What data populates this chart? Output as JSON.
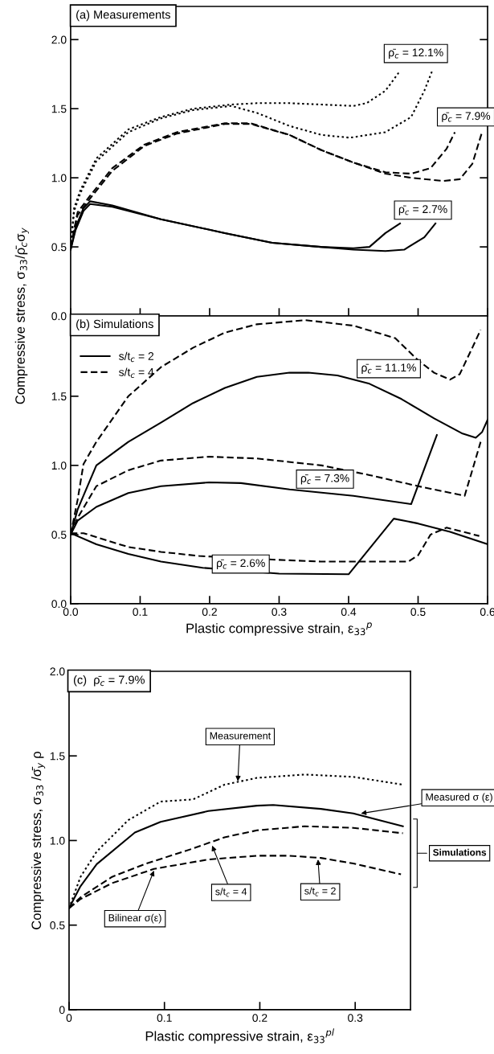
{
  "chart_data": [
    {
      "type": "line",
      "title": "(a) Measurements",
      "ylabel": "Compressive stress, σ$_{33}$/ρ̄$_{c}$σ$_{y}$",
      "xlim": [
        0.0,
        0.6
      ],
      "ylim": [
        0.0,
        2.24
      ],
      "xticks": [
        0,
        0.1,
        0.2,
        0.3,
        0.4,
        0.5,
        0.6
      ],
      "yticks": [
        {
          "value": 0,
          "label": "0.0"
        },
        0.5,
        {
          "value": 1,
          "label": "1.0"
        },
        1.5,
        {
          "value": 2,
          "label": "2.0"
        }
      ],
      "tick_labels": "y",
      "series": [
        {
          "color": "#000000",
          "line_style": "dotted",
          "x": [
            0,
            0.005,
            0.014,
            0.037,
            0.083,
            0.13,
            0.176,
            0.231,
            0.268,
            0.315,
            0.361,
            0.407,
            0.426,
            0.453,
            0.472
          ],
          "values": [
            0.5,
            0.78,
            0.91,
            1.14,
            1.35,
            1.44,
            1.5,
            1.53,
            1.54,
            1.54,
            1.53,
            1.52,
            1.54,
            1.63,
            1.76
          ]
        },
        {
          "color": "#000000",
          "line_style": "dotted",
          "x": [
            0,
            0.005,
            0.014,
            0.037,
            0.083,
            0.13,
            0.176,
            0.231,
            0.268,
            0.315,
            0.361,
            0.402,
            0.453,
            0.49,
            0.509,
            0.52
          ],
          "values": [
            0.5,
            0.76,
            0.89,
            1.12,
            1.33,
            1.43,
            1.49,
            1.52,
            1.47,
            1.375,
            1.31,
            1.29,
            1.33,
            1.44,
            1.63,
            1.77
          ]
        },
        {
          "color": "#000000",
          "line_style": "dashed",
          "x": [
            0,
            0.01,
            0.028,
            0.06,
            0.106,
            0.153,
            0.222,
            0.259,
            0.315,
            0.361,
            0.407,
            0.453,
            0.49,
            0.518,
            0.541,
            0.553
          ],
          "values": [
            0.5,
            0.75,
            0.87,
            1.07,
            1.24,
            1.33,
            1.395,
            1.395,
            1.31,
            1.2,
            1.11,
            1.04,
            1.03,
            1.07,
            1.21,
            1.33
          ]
        },
        {
          "color": "#000000",
          "line_style": "dashed",
          "x": [
            0,
            0.01,
            0.028,
            0.06,
            0.106,
            0.153,
            0.222,
            0.259,
            0.315,
            0.361,
            0.407,
            0.453,
            0.49,
            0.537,
            0.56,
            0.578,
            0.592
          ],
          "values": [
            0.5,
            0.73,
            0.85,
            1.05,
            1.23,
            1.32,
            1.39,
            1.39,
            1.31,
            1.2,
            1.11,
            1.03,
            1.0,
            0.977,
            0.99,
            1.1,
            1.33
          ]
        },
        {
          "color": "#000000",
          "line_style": "solid",
          "x": [
            0,
            0.007,
            0.0185,
            0.028,
            0.06,
            0.13,
            0.222,
            0.29,
            0.36,
            0.407,
            0.43,
            0.453,
            0.474
          ],
          "values": [
            0.48,
            0.64,
            0.78,
            0.83,
            0.8,
            0.7,
            0.6,
            0.53,
            0.5,
            0.49,
            0.5,
            0.6,
            0.67
          ]
        },
        {
          "color": "#000000",
          "line_style": "solid",
          "x": [
            0,
            0.007,
            0.0185,
            0.028,
            0.06,
            0.13,
            0.222,
            0.29,
            0.36,
            0.407,
            0.453,
            0.48,
            0.509,
            0.525
          ],
          "values": [
            0.48,
            0.62,
            0.76,
            0.81,
            0.79,
            0.7,
            0.6,
            0.53,
            0.5,
            0.48,
            0.47,
            0.48,
            0.57,
            0.67
          ]
        }
      ],
      "annotations": [
        "ρ̄$_{c}$ = 12.1%",
        "ρ̄$_{c}$ = 7.9%",
        "ρ̄$_{c}$ = 2.7%"
      ]
    },
    {
      "type": "line",
      "title": "(b) Simulations",
      "xlabel": "Plastic compressive strain, ε$_{33}$$^{p}$",
      "xlim": [
        0.0,
        0.6
      ],
      "ylim": [
        0.0,
        2.08
      ],
      "xticks": [
        {
          "value": 0,
          "label": "0.0"
        },
        0.1,
        0.2,
        0.3,
        0.4,
        0.5,
        0.6
      ],
      "yticks": [
        {
          "value": 0,
          "label": "0.0"
        },
        0.5,
        {
          "value": 1,
          "label": "1.0"
        },
        1.5
      ],
      "legend": "top left",
      "series": [
        {
          "name": "s/t$_{c}$ = 2",
          "color": "#000000",
          "line_style": "solid",
          "x": [
            0,
            0.01,
            0.02,
            0.037,
            0.083,
            0.13,
            0.176,
            0.222,
            0.268,
            0.315,
            0.342,
            0.384,
            0.43,
            0.476,
            0.523,
            0.564,
            0.583,
            0.592,
            0.6
          ],
          "values": [
            0.5,
            0.68,
            0.8,
            1.0,
            1.17,
            1.31,
            1.45,
            1.56,
            1.64,
            1.67,
            1.67,
            1.65,
            1.59,
            1.48,
            1.34,
            1.23,
            1.2,
            1.24,
            1.33
          ]
        },
        {
          "name": "s/t$_{c}$ = 4",
          "color": "#000000",
          "line_style": "dashed",
          "x": [
            0,
            0.01,
            0.0185,
            0.037,
            0.083,
            0.13,
            0.176,
            0.222,
            0.268,
            0.338,
            0.407,
            0.467,
            0.5,
            0.523,
            0.546,
            0.56,
            0.578,
            0.59
          ],
          "values": [
            0.5,
            0.75,
            1.01,
            1.17,
            1.5,
            1.71,
            1.85,
            1.96,
            2.02,
            2.05,
            2.01,
            1.92,
            1.76,
            1.67,
            1.62,
            1.66,
            1.85,
            1.98
          ]
        },
        {
          "color": "#000000",
          "line_style": "solid",
          "x": [
            0,
            0.01,
            0.037,
            0.083,
            0.13,
            0.199,
            0.245,
            0.315,
            0.407,
            0.49,
            0.527
          ],
          "values": [
            0.5,
            0.6,
            0.7,
            0.8,
            0.85,
            0.877,
            0.872,
            0.826,
            0.78,
            0.72,
            1.22
          ]
        },
        {
          "color": "#000000",
          "line_style": "dashed",
          "x": [
            0,
            0.01,
            0.037,
            0.083,
            0.13,
            0.199,
            0.268,
            0.361,
            0.43,
            0.5,
            0.567,
            0.578,
            0.59
          ],
          "values": [
            0.5,
            0.62,
            0.85,
            0.965,
            1.035,
            1.063,
            1.05,
            1.0,
            0.93,
            0.85,
            0.78,
            0.965,
            1.17
          ]
        },
        {
          "color": "#000000",
          "line_style": "solid",
          "x": [
            0,
            0.037,
            0.083,
            0.13,
            0.19,
            0.3,
            0.4,
            0.465,
            0.5,
            0.546,
            0.6
          ],
          "values": [
            0.51,
            0.43,
            0.36,
            0.305,
            0.26,
            0.218,
            0.213,
            0.615,
            0.58,
            0.52,
            0.43
          ]
        },
        {
          "color": "#000000",
          "line_style": "dashed",
          "x": [
            0,
            0.0185,
            0.083,
            0.13,
            0.185,
            0.3,
            0.36,
            0.486,
            0.5,
            0.518,
            0.541,
            0.588
          ],
          "values": [
            0.51,
            0.51,
            0.41,
            0.375,
            0.345,
            0.317,
            0.305,
            0.305,
            0.35,
            0.5,
            0.55,
            0.49
          ]
        }
      ],
      "annotations": [
        "ρ̄$_{c}$ = 11.1%",
        "ρ̄$_{c}$ = 7.3%",
        "ρ̄$_{c}$ = 2.6%"
      ]
    },
    {
      "type": "line",
      "title": "(c)  ρ̄$_{c}$ = 7.9%",
      "xlabel": "Plastic compressive strain, ε$_{33}$$^{pl}$",
      "ylabel": "Compressive stress, σ$_{33}$ /σ̄$_{y}$ ρ",
      "xlim": [
        0,
        0.358
      ],
      "ylim": [
        0,
        2.0
      ],
      "xticks": [
        0,
        0.1,
        0.2,
        0.3
      ],
      "yticks": [
        0,
        0.5,
        {
          "value": 1,
          "label": "1.0"
        },
        1.5,
        {
          "value": 2,
          "label": "2.0"
        }
      ],
      "series": [
        {
          "color": "#000000",
          "line_style": "dotted",
          "x": [
            0,
            0.012,
            0.029,
            0.062,
            0.096,
            0.13,
            0.163,
            0.197,
            0.247,
            0.298,
            0.35
          ],
          "values": [
            0.6,
            0.785,
            0.935,
            1.12,
            1.23,
            1.243,
            1.33,
            1.37,
            1.39,
            1.376,
            1.33
          ]
        },
        {
          "color": "#000000",
          "line_style": "solid",
          "x": [
            0,
            0.012,
            0.029,
            0.069,
            0.096,
            0.146,
            0.197,
            0.214,
            0.264,
            0.298,
            0.35
          ],
          "values": [
            0.6,
            0.73,
            0.86,
            1.047,
            1.11,
            1.174,
            1.206,
            1.21,
            1.187,
            1.16,
            1.084
          ]
        },
        {
          "color": "#000000",
          "line_style": "dashed",
          "x": [
            0,
            0.012,
            0.045,
            0.079,
            0.13,
            0.163,
            0.197,
            0.247,
            0.298,
            0.35
          ],
          "values": [
            0.6,
            0.664,
            0.785,
            0.86,
            0.953,
            1.019,
            1.06,
            1.084,
            1.075,
            1.043
          ]
        },
        {
          "color": "#000000",
          "line_style": "dashed",
          "x": [
            0,
            0.012,
            0.045,
            0.089,
            0.146,
            0.197,
            0.231,
            0.264,
            0.298,
            0.348
          ],
          "values": [
            0.6,
            0.654,
            0.748,
            0.832,
            0.888,
            0.91,
            0.91,
            0.897,
            0.864,
            0.8
          ]
        }
      ],
      "annotations": [
        {
          "text": "Measurement",
          "x": 0.177,
          "y": 1.35
        },
        {
          "text": "Measured σ (ε)",
          "x": 0.306,
          "y": 1.16
        },
        "Simulations",
        {
          "text": "s/t$_{c}$ = 4",
          "x": 0.15,
          "y": 0.97
        },
        {
          "text": "s/t$_{c}$ = 2",
          "x": 0.261,
          "y": 0.888
        },
        {
          "text": "Bilinear σ(ε)",
          "x": 0.089,
          "y": 0.822
        }
      ]
    }
  ]
}
